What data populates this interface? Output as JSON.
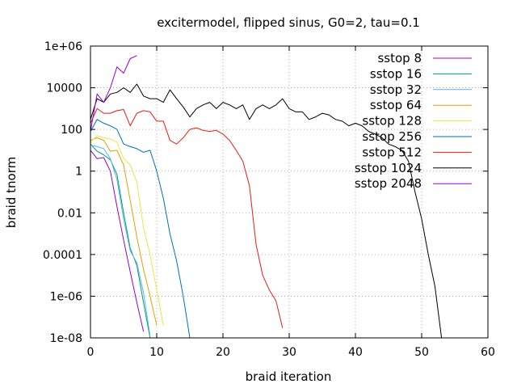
{
  "chart_data": {
    "type": "line",
    "title": "excitermodel, flipped sinus, G0=2, tau=0.1",
    "xlabel": "braid iteration",
    "ylabel": "braid tnorm",
    "xlim": [
      0,
      60
    ],
    "ylim": [
      1e-08,
      1000000.0
    ],
    "yscale": "log",
    "grid": true,
    "legend_position": "top-right",
    "xticks": [
      0,
      10,
      20,
      30,
      40,
      50,
      60
    ],
    "xtick_labels": [
      "0",
      "10",
      "20",
      "30",
      "40",
      "50",
      "60"
    ],
    "yticks": [
      1e-08,
      1e-06,
      0.0001,
      0.01,
      1,
      100,
      10000,
      1000000.0
    ],
    "ytick_labels": [
      "1e-08",
      "1e-06",
      "0.0001",
      "0.01",
      "1",
      "100",
      "10000",
      "1e+06"
    ],
    "series": [
      {
        "name": "sstop 8",
        "color": "#9400d3",
        "x": [
          0,
          1,
          2,
          3,
          4,
          5,
          6,
          7,
          8
        ],
        "y": [
          10,
          4,
          4.5,
          1,
          0.02,
          0.0005,
          1.5e-05,
          5e-07,
          2e-08
        ]
      },
      {
        "name": "sstop 16",
        "color": "#009e73",
        "x": [
          0,
          1,
          2,
          3,
          4,
          5,
          6,
          7,
          8,
          9
        ],
        "y": [
          20,
          9,
          6,
          3.5,
          0.7,
          0.01,
          0.0002,
          3e-05,
          5e-07,
          1e-08
        ]
      },
      {
        "name": "sstop 32",
        "color": "#56b4e9",
        "x": [
          0,
          1,
          2,
          3,
          4,
          5,
          6,
          7,
          8,
          9
        ],
        "y": [
          18,
          15,
          12,
          4,
          0.4,
          0.005,
          0.00015,
          4e-05,
          1.5e-06,
          1.2e-08
        ]
      },
      {
        "name": "sstop 64",
        "color": "#e69f00",
        "x": [
          0,
          1,
          2,
          3,
          4,
          5,
          6,
          7,
          8,
          9,
          10
        ],
        "y": [
          30,
          40,
          30,
          9,
          10,
          2,
          0.04,
          0.0007,
          2e-05,
          1e-06,
          4e-08
        ]
      },
      {
        "name": "sstop 128",
        "color": "#f0e442",
        "x": [
          0,
          1,
          2,
          3,
          4,
          5,
          6,
          7,
          8,
          9,
          10,
          11
        ],
        "y": [
          25,
          50,
          40,
          35,
          25,
          4,
          2,
          0.3,
          0.002,
          0.0001,
          2e-06,
          4e-08
        ]
      },
      {
        "name": "sstop 256",
        "color": "#0072b2",
        "x": [
          0,
          1,
          2,
          3,
          4,
          5,
          6,
          7,
          8,
          9,
          10,
          11,
          12,
          13,
          14,
          15
        ],
        "y": [
          80,
          300,
          200,
          150,
          100,
          20,
          15,
          12,
          8,
          10,
          1,
          0.05,
          0.001,
          5e-05,
          1e-06,
          1e-08
        ]
      },
      {
        "name": "sstop 512",
        "color": "#e51e10",
        "x": [
          0,
          1,
          2,
          3,
          4,
          5,
          6,
          7,
          8,
          9,
          10,
          11,
          12,
          13,
          14,
          15,
          16,
          17,
          18,
          19,
          20,
          21,
          22,
          23,
          24,
          25,
          26,
          27,
          28,
          29
        ],
        "y": [
          200,
          1000,
          600,
          600,
          800,
          900,
          150,
          600,
          800,
          700,
          250,
          250,
          30,
          20,
          40,
          100,
          120,
          90,
          80,
          90,
          60,
          30,
          10,
          3,
          0.2,
          0.0003,
          1e-05,
          2e-06,
          6e-07,
          3e-08
        ]
      },
      {
        "name": "sstop 1024",
        "color": "#000000",
        "x": [
          0,
          1,
          2,
          3,
          4,
          5,
          6,
          7,
          8,
          9,
          10,
          11,
          12,
          13,
          14,
          15,
          16,
          17,
          18,
          19,
          20,
          21,
          22,
          23,
          24,
          25,
          26,
          27,
          28,
          29,
          30,
          31,
          32,
          33,
          34,
          35,
          36,
          37,
          38,
          39,
          40,
          41,
          42,
          43,
          44,
          45,
          46,
          47,
          48,
          49,
          50,
          51,
          52,
          53
        ],
        "y": [
          300,
          3000,
          2000,
          5000,
          6000,
          10000,
          6000,
          15000,
          4000,
          3000,
          3000,
          2000,
          8000,
          3000,
          1200,
          400,
          1000,
          1500,
          2000,
          1000,
          2000,
          1500,
          1000,
          1500,
          300,
          1000,
          1500,
          1000,
          1500,
          3000,
          1000,
          700,
          700,
          300,
          400,
          600,
          500,
          300,
          250,
          150,
          200,
          150,
          80,
          60,
          40,
          20,
          15,
          10,
          3,
          0.1,
          0.005,
          0.0001,
          3e-06,
          1e-08
        ]
      },
      {
        "name": "sstop 2048",
        "color": "#9400d3",
        "x": [
          0,
          1,
          2,
          3,
          4,
          5,
          6,
          7
        ],
        "y": [
          80,
          5000,
          2000,
          10000,
          100000,
          50000,
          250000,
          350000
        ]
      }
    ]
  }
}
